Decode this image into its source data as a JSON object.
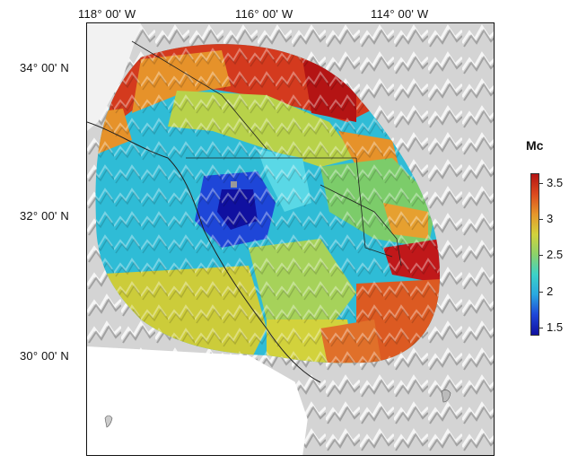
{
  "map": {
    "lon_labels": [
      "118° 00' W",
      "116° 00' W",
      "114° 00' W"
    ],
    "lat_labels": [
      "34° 00' N",
      "32° 00' N",
      "30° 00' N"
    ]
  },
  "colorbar": {
    "title": "Mc",
    "tick_labels": [
      "3.5",
      "3",
      "2.5",
      "2",
      "1.5"
    ],
    "min": 1.5,
    "max": 3.6,
    "colors": [
      "#1010a0",
      "#1e46d8",
      "#2aa8e0",
      "#3cd2c8",
      "#8cd26a",
      "#d2d23c",
      "#e6962a",
      "#dc4a1e",
      "#b41414"
    ]
  }
}
